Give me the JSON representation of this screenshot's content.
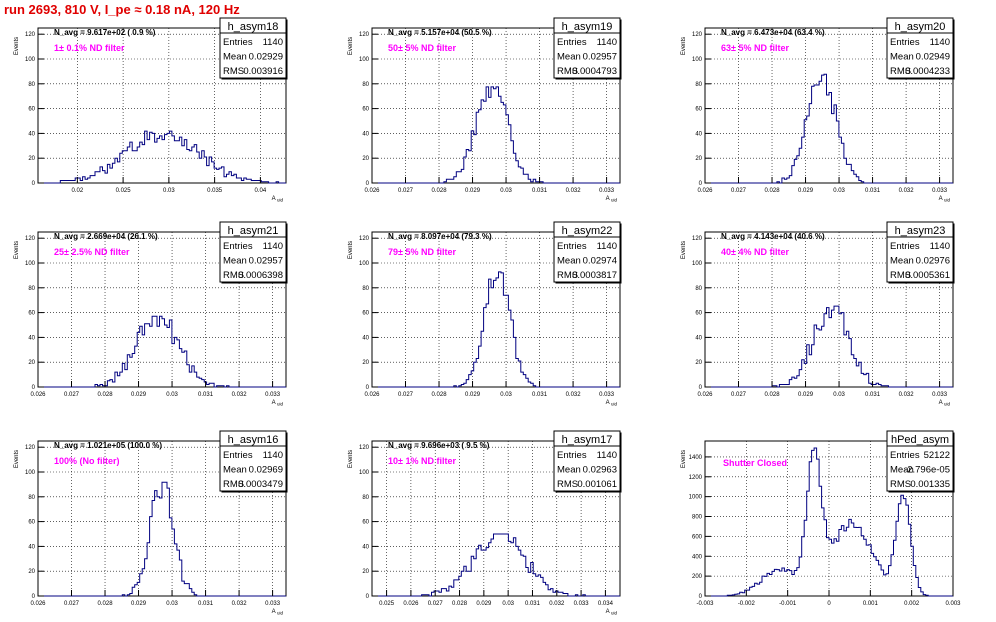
{
  "page": {
    "title": "run 2693,   810 V, I_pe ≈ 0.18 nA, 120 Hz"
  },
  "colors": {
    "histogram": "#000080",
    "annotation": "#ff00ff",
    "title": "#e00000",
    "grid": "#000000"
  },
  "chart_data": [
    {
      "type": "histogram",
      "name": "h_asym18",
      "annotation": "N_avg = 9.617e+02 ( 0.9 %)",
      "label": "1± 0.1% ND filter",
      "stats": {
        "entries_label": "Entries",
        "entries": "1140",
        "mean_label": "Mean",
        "mean": "0.02929",
        "rms_label": "RMS",
        "rms": "0.003916"
      },
      "xlabel": "A_uid",
      "ylabel": "Events",
      "xlim": [
        0.0157,
        0.0428
      ],
      "ylim": [
        0,
        125
      ],
      "xticks": [
        0.02,
        0.025,
        0.03,
        0.035,
        0.04
      ],
      "xticklabels": [
        "0.02",
        "0.025",
        "0.03",
        "0.035",
        "0.04"
      ],
      "yticks": [
        0,
        20,
        40,
        60,
        80,
        100,
        120
      ],
      "mean_val": 0.02929,
      "rms_val": 0.003916,
      "peak": 41,
      "grid": true
    },
    {
      "type": "histogram",
      "name": "h_asym19",
      "annotation": "N_avg = 5.157e+04 (50.5 %)",
      "label": "50± 5% ND filter",
      "stats": {
        "entries_label": "Entries",
        "entries": "1140",
        "mean_label": "Mean",
        "mean": "0.02957",
        "rms_label": "RMS",
        "rms": "0.0004793"
      },
      "xlabel": "A_uid",
      "ylabel": "Events",
      "xlim": [
        0.026,
        0.0334
      ],
      "ylim": [
        0,
        125
      ],
      "xticks": [
        0.026,
        0.027,
        0.028,
        0.029,
        0.03,
        0.031,
        0.032,
        0.033
      ],
      "xticklabels": [
        "0.026",
        "0.027",
        "0.028",
        "0.029",
        "0.03",
        "0.031",
        "0.032",
        "0.033"
      ],
      "yticks": [
        0,
        20,
        40,
        60,
        80,
        100,
        120
      ],
      "mean_val": 0.02957,
      "rms_val": 0.0004793,
      "peak": 76,
      "grid": true
    },
    {
      "type": "histogram",
      "name": "h_asym20",
      "annotation": "N_avg = 6.473e+04 (63.4 %)",
      "label": "63± 5% ND filter",
      "stats": {
        "entries_label": "Entries",
        "entries": "1140",
        "mean_label": "Mean",
        "mean": "0.02949",
        "rms_label": "RMS",
        "rms": "0.0004233"
      },
      "xlabel": "A_uid",
      "ylabel": "Events",
      "xlim": [
        0.026,
        0.0334
      ],
      "ylim": [
        0,
        125
      ],
      "xticks": [
        0.026,
        0.027,
        0.028,
        0.029,
        0.03,
        0.031,
        0.032,
        0.033
      ],
      "xticklabels": [
        "0.026",
        "0.027",
        "0.028",
        "0.029",
        "0.03",
        "0.031",
        "0.032",
        "0.033"
      ],
      "yticks": [
        0,
        20,
        40,
        60,
        80,
        100,
        120
      ],
      "mean_val": 0.02949,
      "rms_val": 0.0004233,
      "peak": 86,
      "grid": true
    },
    {
      "type": "histogram",
      "name": "h_asym21",
      "annotation": "N_avg = 2.669e+04 (26.1 %)",
      "label": "25± 2.5% ND filter",
      "stats": {
        "entries_label": "Entries",
        "entries": "1140",
        "mean_label": "Mean",
        "mean": "0.02957",
        "rms_label": "RMS",
        "rms": "0.0006398"
      },
      "xlabel": "A_uid",
      "ylabel": "Events",
      "xlim": [
        0.026,
        0.0334
      ],
      "ylim": [
        0,
        125
      ],
      "xticks": [
        0.026,
        0.027,
        0.028,
        0.029,
        0.03,
        0.031,
        0.032,
        0.033
      ],
      "xticklabels": [
        "0.026",
        "0.027",
        "0.028",
        "0.029",
        "0.03",
        "0.031",
        "0.032",
        "0.033"
      ],
      "yticks": [
        0,
        20,
        40,
        60,
        80,
        100,
        120
      ],
      "mean_val": 0.02957,
      "rms_val": 0.0006398,
      "peak": 56,
      "grid": true
    },
    {
      "type": "histogram",
      "name": "h_asym22",
      "annotation": "N_avg = 8.097e+04 (79.3 %)",
      "label": "79± 5% ND filter",
      "stats": {
        "entries_label": "Entries",
        "entries": "1140",
        "mean_label": "Mean",
        "mean": "0.02974",
        "rms_label": "RMS",
        "rms": "0.0003817"
      },
      "xlabel": "A_uid",
      "ylabel": "Events",
      "xlim": [
        0.026,
        0.0334
      ],
      "ylim": [
        0,
        125
      ],
      "xticks": [
        0.026,
        0.027,
        0.028,
        0.029,
        0.03,
        0.031,
        0.032,
        0.033
      ],
      "xticklabels": [
        "0.026",
        "0.027",
        "0.028",
        "0.029",
        "0.03",
        "0.031",
        "0.032",
        "0.033"
      ],
      "yticks": [
        0,
        20,
        40,
        60,
        80,
        100,
        120
      ],
      "mean_val": 0.02974,
      "rms_val": 0.0003817,
      "peak": 91,
      "grid": true
    },
    {
      "type": "histogram",
      "name": "h_asym23",
      "annotation": "N_avg = 4.143e+04 (40.6 %)",
      "label": "40± 4% ND filter",
      "stats": {
        "entries_label": "Entries",
        "entries": "1140",
        "mean_label": "Mean",
        "mean": "0.02976",
        "rms_label": "RMS",
        "rms": "0.0005361"
      },
      "xlabel": "A_uid",
      "ylabel": "Events",
      "xlim": [
        0.026,
        0.0334
      ],
      "ylim": [
        0,
        125
      ],
      "xticks": [
        0.026,
        0.027,
        0.028,
        0.029,
        0.03,
        0.031,
        0.032,
        0.033
      ],
      "xticklabels": [
        "0.026",
        "0.027",
        "0.028",
        "0.029",
        "0.03",
        "0.031",
        "0.032",
        "0.033"
      ],
      "yticks": [
        0,
        20,
        40,
        60,
        80,
        100,
        120
      ],
      "mean_val": 0.02976,
      "rms_val": 0.0005361,
      "peak": 64,
      "grid": true
    },
    {
      "type": "histogram",
      "name": "h_asym16",
      "annotation": "N_avg = 1.021e+05 (100.0 %)",
      "label": "100% (No filter)",
      "stats": {
        "entries_label": "Entries",
        "entries": "1140",
        "mean_label": "Mean",
        "mean": "0.02969",
        "rms_label": "RMS",
        "rms": "0.0003479"
      },
      "xlabel": "A_uid",
      "ylabel": "Events",
      "xlim": [
        0.026,
        0.0334
      ],
      "ylim": [
        0,
        125
      ],
      "xticks": [
        0.026,
        0.027,
        0.028,
        0.029,
        0.03,
        0.031,
        0.032,
        0.033
      ],
      "xticklabels": [
        "0.026",
        "0.027",
        "0.028",
        "0.029",
        "0.03",
        "0.031",
        "0.032",
        "0.033"
      ],
      "yticks": [
        0,
        20,
        40,
        60,
        80,
        100,
        120
      ],
      "mean_val": 0.02969,
      "rms_val": 0.0003479,
      "peak": 90,
      "grid": true
    },
    {
      "type": "histogram",
      "name": "h_asym17",
      "annotation": "N_avg = 9.696e+03 ( 9.5 %)",
      "label": "10± 1% ND filter",
      "stats": {
        "entries_label": "Entries",
        "entries": "1140",
        "mean_label": "Mean",
        "mean": "0.02963",
        "rms_label": "RMS",
        "rms": "0.001061"
      },
      "xlabel": "A_uid",
      "ylabel": "Events",
      "xlim": [
        0.0244,
        0.0346
      ],
      "ylim": [
        0,
        125
      ],
      "xticks": [
        0.025,
        0.026,
        0.027,
        0.028,
        0.029,
        0.03,
        0.031,
        0.032,
        0.033,
        0.034
      ],
      "xticklabels": [
        "0.025",
        "0.026",
        "0.027",
        "0.028",
        "0.029",
        "0.03",
        "0.031",
        "0.032",
        "0.033",
        "0.034"
      ],
      "yticks": [
        0,
        20,
        40,
        60,
        80,
        100,
        120
      ],
      "mean_val": 0.02963,
      "rms_val": 0.001061,
      "peak": 49,
      "grid": true
    },
    {
      "type": "histogram",
      "name": "hPed_asym",
      "annotation": "",
      "label": "Shutter Closed",
      "stats": {
        "entries_label": "Entries",
        "entries": "52122",
        "mean_label": "Mean",
        "mean": "-2.796e-05",
        "rms_label": "RMS",
        "rms": "0.001335"
      },
      "xlabel": "",
      "ylabel": "Events",
      "xlim": [
        -0.003,
        0.003
      ],
      "ylim": [
        0,
        1560
      ],
      "xticks": [
        -0.003,
        -0.002,
        -0.001,
        0,
        0.001,
        0.002,
        0.003
      ],
      "xticklabels": [
        "-0.003",
        "-0.002",
        "-0.001",
        "0",
        "0.001",
        "0.002",
        "0.003"
      ],
      "yticks": [
        0,
        200,
        400,
        600,
        800,
        1000,
        1200,
        1400
      ],
      "mean_val": -2.8e-05,
      "rms_val": 0.001335,
      "peak": 1460,
      "grid": true
    }
  ]
}
